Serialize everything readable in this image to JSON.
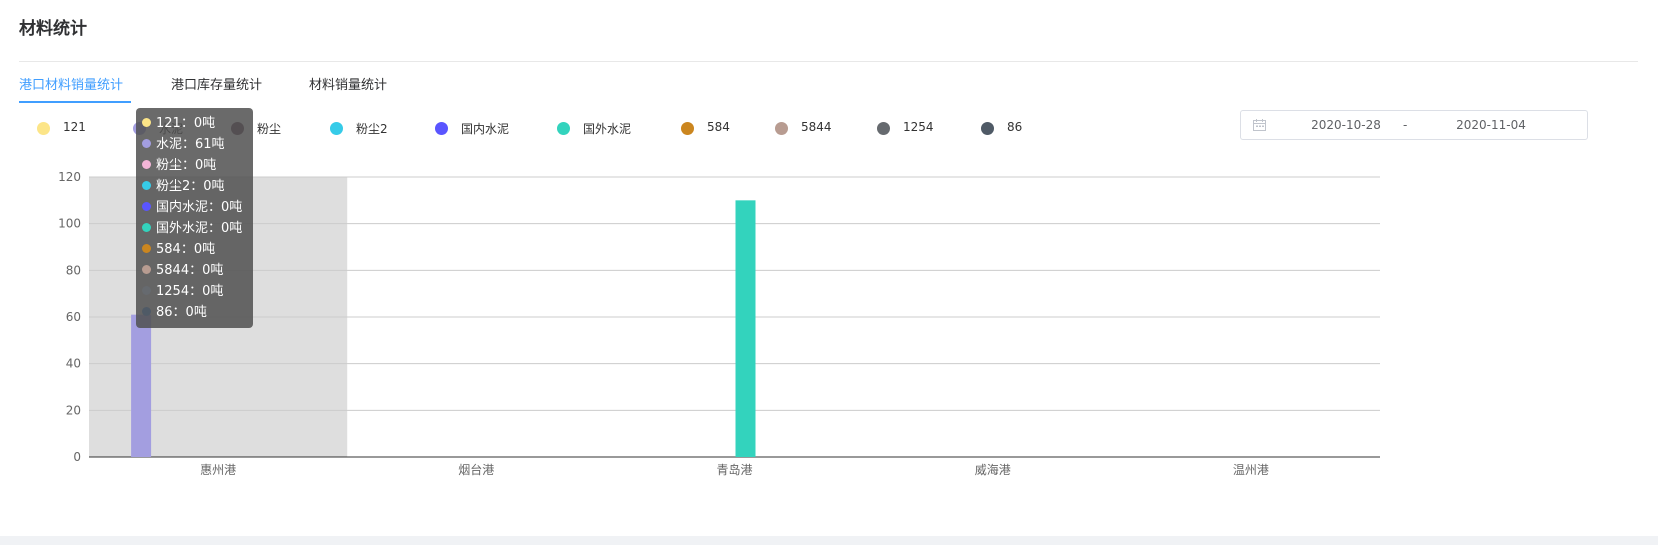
{
  "page": {
    "title": "材料统计",
    "tabs": [
      {
        "label": "港口材料销量统计",
        "active": true
      },
      {
        "label": "港口库存量统计",
        "active": false
      },
      {
        "label": "材料销量统计",
        "active": false
      }
    ]
  },
  "date_range": {
    "start": "2020-10-28",
    "separator": "-",
    "end": "2020-11-04",
    "icon": "calendar-icon"
  },
  "tooltip": {
    "category": "惠州港",
    "rows": [
      {
        "series": "121",
        "text": "121：0吨",
        "color": "#fce588"
      },
      {
        "series": "水泥",
        "text": "水泥：61吨",
        "color": "#a39ee0"
      },
      {
        "series": "粉尘",
        "text": "粉尘：0吨",
        "color": "#f4b6d8"
      },
      {
        "series": "粉尘2",
        "text": "粉尘2：0吨",
        "color": "#36cbe8"
      },
      {
        "series": "国内水泥",
        "text": "国内水泥：0吨",
        "color": "#5a55ff"
      },
      {
        "series": "国外水泥",
        "text": "国外水泥：0吨",
        "color": "#33d3bd"
      },
      {
        "series": "584",
        "text": "584：0吨",
        "color": "#cb861f"
      },
      {
        "series": "5844",
        "text": "5844：0吨",
        "color": "#b89c91"
      },
      {
        "series": "1254",
        "text": "1254：0吨",
        "color": "#666a6f"
      },
      {
        "series": "86",
        "text": "86：0吨",
        "color": "#4f5a66"
      }
    ]
  },
  "chart_data": {
    "type": "bar",
    "categories": [
      "惠州港",
      "烟台港",
      "青岛港",
      "威海港",
      "温州港"
    ],
    "ylim": [
      0,
      120
    ],
    "yticks": [
      0,
      20,
      40,
      60,
      80,
      100,
      120
    ],
    "grid": true,
    "legend_position": "top-left",
    "highlighted_category": "惠州港",
    "series": [
      {
        "name": "121",
        "color": "#fce588",
        "values": [
          0,
          0,
          0,
          0,
          0
        ]
      },
      {
        "name": "水泥",
        "color": "#a39ee0",
        "values": [
          61,
          0,
          0,
          0,
          0
        ]
      },
      {
        "name": "粉尘",
        "color": "#6d4a5e",
        "values": [
          0,
          0,
          0,
          0,
          0
        ]
      },
      {
        "name": "粉尘2",
        "color": "#36cbe8",
        "values": [
          0,
          0,
          0,
          0,
          0
        ]
      },
      {
        "name": "国内水泥",
        "color": "#5a55ff",
        "values": [
          0,
          0,
          0,
          0,
          0
        ]
      },
      {
        "name": "国外水泥",
        "color": "#33d3bd",
        "values": [
          0,
          0,
          110,
          0,
          0
        ]
      },
      {
        "name": "584",
        "color": "#cb861f",
        "values": [
          0,
          0,
          0,
          0,
          0
        ]
      },
      {
        "name": "5844",
        "color": "#b89c91",
        "values": [
          0,
          0,
          0,
          0,
          0
        ]
      },
      {
        "name": "1254",
        "color": "#666a6f",
        "values": [
          0,
          0,
          0,
          0,
          0
        ]
      },
      {
        "name": "86",
        "color": "#4f5a66",
        "values": [
          0,
          0,
          0,
          0,
          0
        ]
      }
    ]
  }
}
